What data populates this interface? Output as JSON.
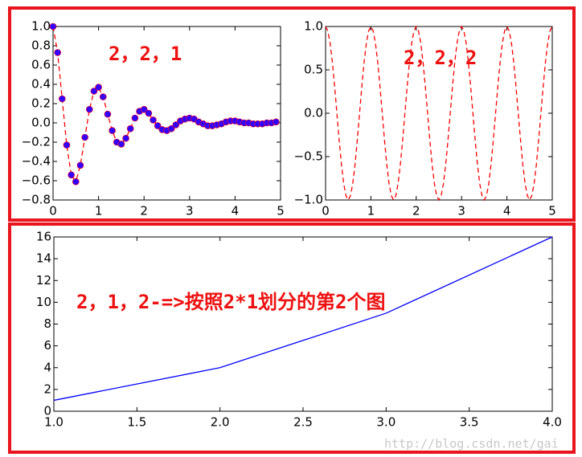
{
  "chart_data": [
    {
      "type": "line",
      "x": [
        0,
        0.1,
        0.2,
        0.3,
        0.4,
        0.5,
        0.6,
        0.7,
        0.8,
        0.9,
        1,
        1.1,
        1.2,
        1.3,
        1.4,
        1.5,
        1.6,
        1.7,
        1.8,
        1.9,
        2,
        2.1,
        2.2,
        2.3,
        2.4,
        2.5,
        2.6,
        2.7,
        2.8,
        2.9,
        3,
        3.1,
        3.2,
        3.3,
        3.4,
        3.5,
        3.6,
        3.7,
        3.8,
        3.9,
        4,
        4.1,
        4.2,
        4.3,
        4.4,
        4.5,
        4.6,
        4.7,
        4.8,
        4.9
      ],
      "series": [
        {
          "color": "#ff0000",
          "linestyle": "--",
          "marker": "o",
          "marker_color": "#3300ff",
          "values": [
            1,
            0.73,
            0.25,
            -0.23,
            -0.54,
            -0.61,
            -0.44,
            -0.15,
            0.14,
            0.33,
            0.37,
            0.27,
            0.09,
            -0.08,
            -0.2,
            -0.22,
            -0.16,
            -0.06,
            0.05,
            0.12,
            0.14,
            0.1,
            0.03,
            -0.03,
            -0.07,
            -0.08,
            -0.06,
            -0.02,
            0.02,
            0.04,
            0.05,
            0.04,
            0.01,
            -0.01,
            -0.03,
            -0.03,
            -0.02,
            -0.01,
            0.01,
            0.02,
            0.02,
            0.01,
            0,
            0,
            -0.01,
            -0.01,
            -0.01,
            0,
            0,
            0.01
          ]
        }
      ],
      "xlim": [
        0,
        5
      ],
      "xticks": [
        0,
        1,
        2,
        3,
        4,
        5
      ],
      "ylim": [
        -0.8,
        1.0
      ],
      "yticks": [
        {
          "value": -0.8,
          "label": "−0.8"
        },
        {
          "value": -0.6,
          "label": "−0.6"
        },
        {
          "value": -0.4,
          "label": "−0.4"
        },
        {
          "value": -0.2,
          "label": "−0.2"
        },
        {
          "value": 0,
          "label": "0.0"
        },
        {
          "value": 0.2,
          "label": "0.2"
        },
        {
          "value": 0.4,
          "label": "0.4"
        },
        {
          "value": 0.6,
          "label": "0.6"
        },
        {
          "value": 0.8,
          "label": "0.8"
        },
        {
          "value": 1,
          "label": "1.0"
        }
      ],
      "annotation": "2，2，1"
    },
    {
      "type": "line",
      "x": [
        0,
        0.05,
        0.1,
        0.15,
        0.2,
        0.25,
        0.3,
        0.35,
        0.4,
        0.45,
        0.5,
        0.55,
        0.6,
        0.65,
        0.7,
        0.75,
        0.8,
        0.85,
        0.9,
        0.95,
        1,
        1.05,
        1.1,
        1.15,
        1.2,
        1.25,
        1.3,
        1.35,
        1.4,
        1.45,
        1.5,
        1.55,
        1.6,
        1.65,
        1.7,
        1.75,
        1.8,
        1.85,
        1.9,
        1.95,
        2,
        2.05,
        2.1,
        2.15,
        2.2,
        2.25,
        2.3,
        2.35,
        2.4,
        2.45,
        2.5,
        2.55,
        2.6,
        2.65,
        2.7,
        2.75,
        2.8,
        2.85,
        2.9,
        2.95,
        3,
        3.05,
        3.1,
        3.15,
        3.2,
        3.25,
        3.3,
        3.35,
        3.4,
        3.45,
        3.5,
        3.55,
        3.6,
        3.65,
        3.7,
        3.75,
        3.8,
        3.85,
        3.9,
        3.95,
        4,
        4.05,
        4.1,
        4.15,
        4.2,
        4.25,
        4.3,
        4.35,
        4.4,
        4.45,
        4.5,
        4.55,
        4.6,
        4.65,
        4.7,
        4.75,
        4.8,
        4.85,
        4.9,
        4.95,
        5
      ],
      "series": [
        {
          "color": "#ff0000",
          "linestyle": "--",
          "values": [
            1,
            0.95,
            0.81,
            0.59,
            0.31,
            0,
            -0.31,
            -0.59,
            -0.81,
            -0.95,
            -1,
            -0.95,
            -0.81,
            -0.59,
            -0.31,
            0,
            0.31,
            0.59,
            0.81,
            0.95,
            1,
            0.95,
            0.81,
            0.59,
            0.31,
            0,
            -0.31,
            -0.59,
            -0.81,
            -0.95,
            -1,
            -0.95,
            -0.81,
            -0.59,
            -0.31,
            0,
            0.31,
            0.59,
            0.81,
            0.95,
            1,
            0.95,
            0.81,
            0.59,
            0.31,
            0,
            -0.31,
            -0.59,
            -0.81,
            -0.95,
            -1,
            -0.95,
            -0.81,
            -0.59,
            -0.31,
            0,
            0.31,
            0.59,
            0.81,
            0.95,
            1,
            0.95,
            0.81,
            0.59,
            0.31,
            0,
            -0.31,
            -0.59,
            -0.81,
            -0.95,
            -1,
            -0.95,
            -0.81,
            -0.59,
            -0.31,
            0,
            0.31,
            0.59,
            0.81,
            0.95,
            1,
            0.95,
            0.81,
            0.59,
            0.31,
            0,
            -0.31,
            -0.59,
            -0.81,
            -0.95,
            -1,
            -0.95,
            -0.81,
            -0.59,
            -0.31,
            0,
            0.31,
            0.59,
            0.81,
            0.95,
            1
          ]
        }
      ],
      "xlim": [
        0,
        5
      ],
      "xticks": [
        0,
        1,
        2,
        3,
        4,
        5
      ],
      "ylim": [
        -1,
        1
      ],
      "yticks": [
        {
          "value": -1,
          "label": "−1.0"
        },
        {
          "value": -0.5,
          "label": "−0.5"
        },
        {
          "value": 0,
          "label": "0.0"
        },
        {
          "value": 0.5,
          "label": "0.5"
        },
        {
          "value": 1,
          "label": "1.0"
        }
      ],
      "annotation": "2，2，2"
    },
    {
      "type": "line",
      "x": [
        1,
        2,
        3,
        4
      ],
      "series": [
        {
          "color": "#0000ff",
          "linestyle": "-",
          "values": [
            1,
            4,
            9,
            16
          ]
        }
      ],
      "xlim": [
        1,
        4
      ],
      "xticks": [
        {
          "value": 1,
          "label": "1.0"
        },
        {
          "value": 1.5,
          "label": "1.5"
        },
        {
          "value": 2,
          "label": "2.0"
        },
        {
          "value": 2.5,
          "label": "2.5"
        },
        {
          "value": 3,
          "label": "3.0"
        },
        {
          "value": 3.5,
          "label": "3.5"
        },
        {
          "value": 4,
          "label": "4.0"
        }
      ],
      "ylim": [
        0,
        16
      ],
      "yticks": [
        0,
        2,
        4,
        6,
        8,
        10,
        12,
        14,
        16
      ],
      "annotation": "2，1，2-=>按照2*1划分的第2个图"
    }
  ],
  "watermark": "http://blog.csdn.net/gai"
}
